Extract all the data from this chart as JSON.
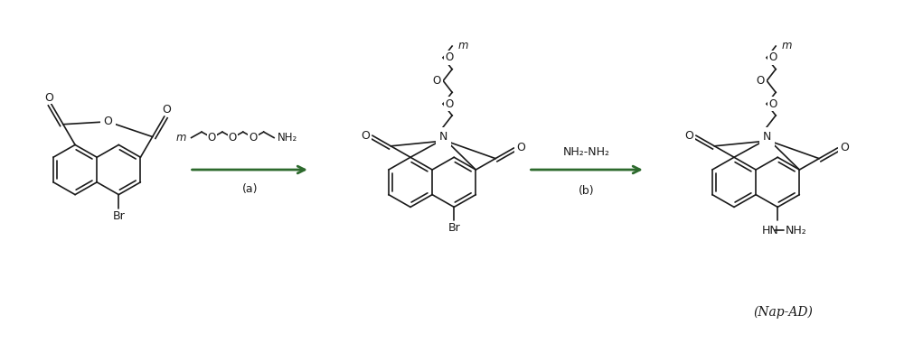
{
  "background": "#ffffff",
  "line_color": "#1a1a1a",
  "arrow_color": "#2d6a2d",
  "figsize": [
    10.0,
    3.8
  ],
  "dpi": 100,
  "label_a": "(a)",
  "label_b": "(b)",
  "label_nap": "(Nap-AD)"
}
